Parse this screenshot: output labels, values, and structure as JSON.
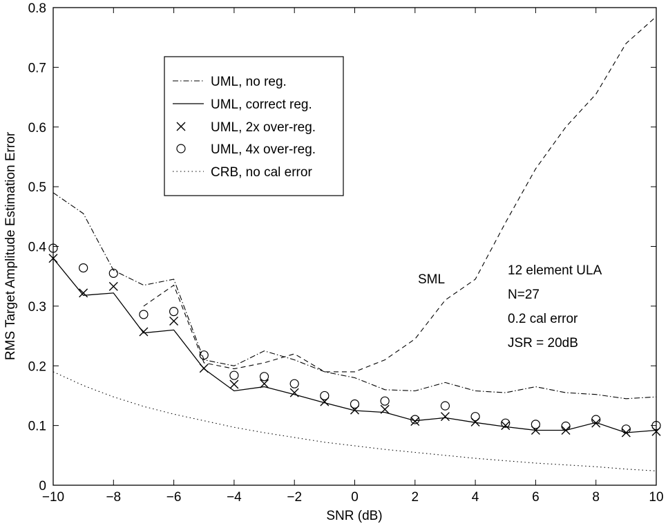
{
  "chart_data": {
    "type": "line",
    "title": "",
    "xlabel": "SNR (dB)",
    "ylabel": "RMS Target Amplitude Estimation Error",
    "xlim": [
      -10,
      10
    ],
    "ylim": [
      0,
      0.8
    ],
    "xticks": [
      -10,
      -8,
      -6,
      -4,
      -2,
      0,
      2,
      4,
      6,
      8,
      10
    ],
    "xtick_labels": [
      "−10",
      "−8",
      "−6",
      "−4",
      "−2",
      "0",
      "2",
      "4",
      "6",
      "8",
      "10"
    ],
    "yticks": [
      0,
      0.1,
      0.2,
      0.3,
      0.4,
      0.5,
      0.6,
      0.7,
      0.8
    ],
    "ytick_labels": [
      "0",
      "0.1",
      "0.2",
      "0.3",
      "0.4",
      "0.5",
      "0.6",
      "0.7",
      "0.8"
    ],
    "grid": false,
    "legend_position": "upper-left",
    "x": [
      -10,
      -9,
      -8,
      -7,
      -6,
      -5,
      -4,
      -3,
      -2,
      -1,
      0,
      1,
      2,
      3,
      4,
      5,
      6,
      7,
      8,
      9,
      10
    ],
    "series": [
      {
        "name": "UML, no reg.",
        "style": "dashdot",
        "values": [
          0.49,
          0.455,
          0.36,
          0.335,
          0.345,
          0.21,
          0.2,
          0.225,
          0.21,
          0.19,
          0.18,
          0.16,
          0.158,
          0.172,
          0.158,
          0.155,
          0.165,
          0.155,
          0.152,
          0.145,
          0.148
        ]
      },
      {
        "name": "UML, correct reg.",
        "style": "solid",
        "values": [
          0.38,
          0.318,
          0.322,
          0.255,
          0.26,
          0.195,
          0.158,
          0.165,
          0.152,
          0.138,
          0.125,
          0.122,
          0.108,
          0.113,
          0.105,
          0.098,
          0.092,
          0.092,
          0.105,
          0.088,
          0.092
        ]
      },
      {
        "name": "UML, 2x over-reg.",
        "style": "x-marker",
        "values": [
          0.38,
          0.322,
          0.333,
          0.257,
          0.275,
          0.196,
          0.169,
          0.17,
          0.155,
          0.14,
          0.126,
          0.127,
          0.107,
          0.115,
          0.106,
          0.1,
          0.092,
          0.092,
          0.104,
          0.088,
          0.09
        ]
      },
      {
        "name": "UML, 4x over-reg.",
        "style": "o-marker",
        "values": [
          0.397,
          0.364,
          0.355,
          0.286,
          0.291,
          0.218,
          0.184,
          0.182,
          0.17,
          0.15,
          0.136,
          0.141,
          0.11,
          0.133,
          0.115,
          0.104,
          0.102,
          0.099,
          0.11,
          0.094,
          0.1
        ]
      },
      {
        "name": "CRB, no cal error",
        "style": "dotted",
        "values": [
          0.19,
          0.167,
          0.148,
          0.132,
          0.119,
          0.108,
          0.097,
          0.088,
          0.08,
          0.072,
          0.066,
          0.06,
          0.055,
          0.05,
          0.045,
          0.041,
          0.037,
          0.034,
          0.031,
          0.027,
          0.024
        ]
      },
      {
        "name": "SML",
        "style": "dashed",
        "values": [
          null,
          null,
          null,
          0.3,
          0.335,
          0.205,
          0.195,
          0.205,
          0.22,
          0.19,
          0.19,
          0.21,
          0.245,
          0.31,
          0.345,
          0.44,
          0.53,
          0.6,
          0.655,
          0.74,
          0.785
        ]
      }
    ],
    "annotations": {
      "sml_label": "SML",
      "info_lines": [
        "12 element ULA",
        "N=27",
        "0.2 cal error",
        "JSR = 20dB"
      ]
    }
  }
}
